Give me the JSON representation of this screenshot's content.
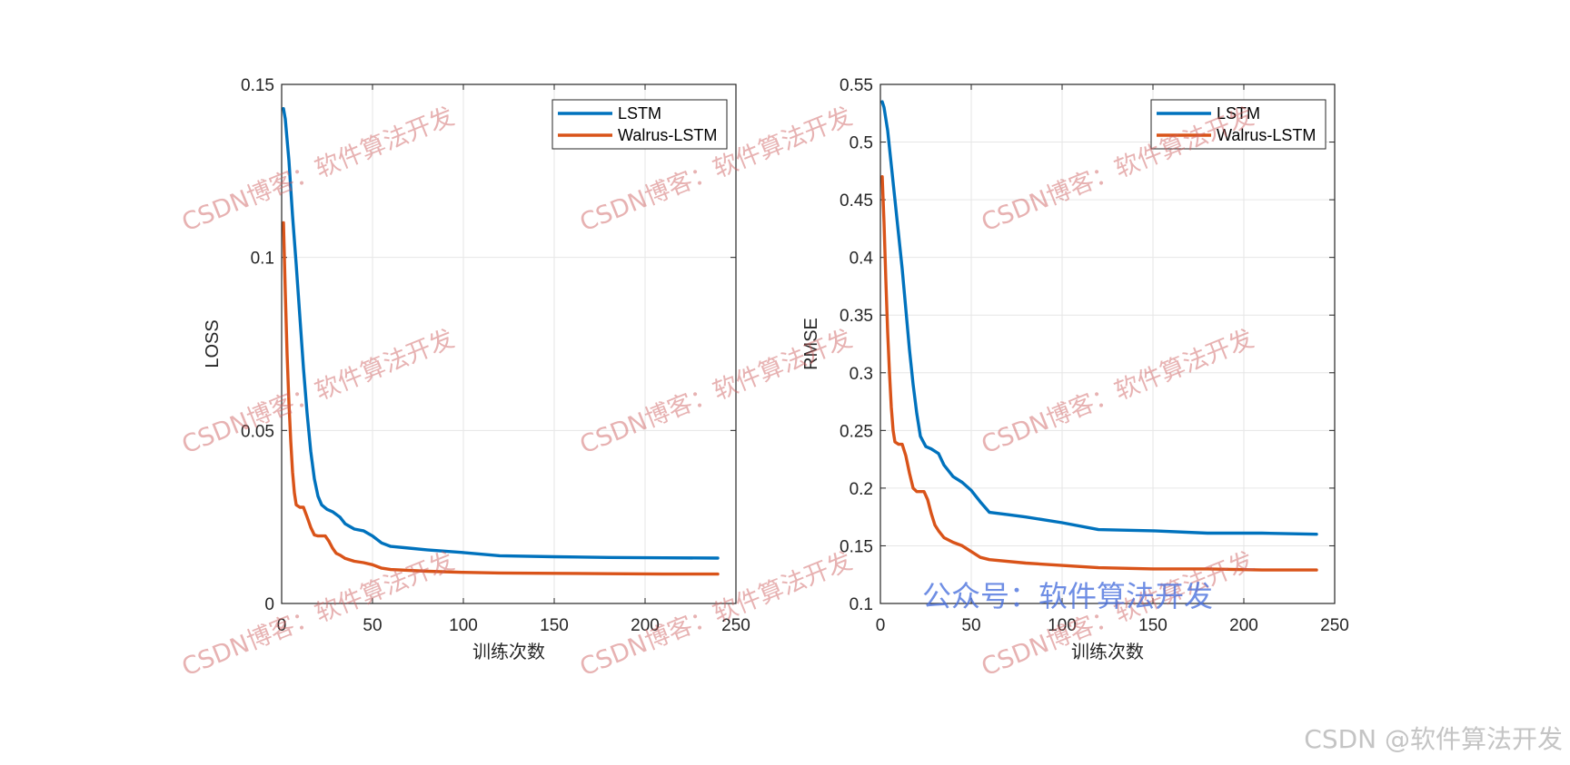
{
  "chart_data": [
    {
      "type": "line",
      "xlabel": "训练次数",
      "ylabel": "LOSS",
      "xlim": [
        0,
        250
      ],
      "ylim": [
        0,
        0.15
      ],
      "xticks": [
        0,
        50,
        100,
        150,
        200,
        250
      ],
      "yticks": [
        0,
        0.05,
        0.1,
        0.15
      ],
      "xtick_labels": [
        "0",
        "50",
        "100",
        "150",
        "200",
        "250"
      ],
      "ytick_labels": [
        "0",
        "0.05",
        "0.1",
        "0.15"
      ],
      "grid": true,
      "legend_position": "top-right",
      "series": [
        {
          "name": "LSTM",
          "color": "#0072BD",
          "x": [
            1,
            2,
            4,
            6,
            8,
            10,
            12,
            14,
            16,
            18,
            20,
            22,
            25,
            28,
            32,
            35,
            40,
            45,
            50,
            55,
            60,
            70,
            80,
            100,
            120,
            150,
            180,
            210,
            240
          ],
          "y": [
            0.143,
            0.14,
            0.128,
            0.112,
            0.098,
            0.083,
            0.068,
            0.055,
            0.044,
            0.036,
            0.031,
            0.0285,
            0.0272,
            0.0265,
            0.025,
            0.023,
            0.0215,
            0.021,
            0.0195,
            0.0175,
            0.0165,
            0.016,
            0.0155,
            0.0147,
            0.0138,
            0.0135,
            0.0133,
            0.0132,
            0.0131
          ]
        },
        {
          "name": "Walrus-LSTM",
          "color": "#D95319",
          "x": [
            1,
            2,
            3,
            4,
            5,
            6,
            7,
            8,
            10,
            12,
            14,
            16,
            18,
            20,
            24,
            26,
            28,
            30,
            32,
            35,
            40,
            45,
            50,
            55,
            60,
            80,
            100,
            120,
            150,
            180,
            210,
            240
          ],
          "y": [
            0.11,
            0.09,
            0.072,
            0.058,
            0.047,
            0.038,
            0.032,
            0.0285,
            0.0278,
            0.0278,
            0.025,
            0.022,
            0.0198,
            0.0195,
            0.0195,
            0.018,
            0.016,
            0.0145,
            0.014,
            0.013,
            0.0122,
            0.0118,
            0.0112,
            0.0102,
            0.0098,
            0.0093,
            0.009,
            0.0088,
            0.0087,
            0.0086,
            0.0085,
            0.0085
          ]
        }
      ]
    },
    {
      "type": "line",
      "xlabel": "训练次数",
      "ylabel": "RMSE",
      "xlim": [
        0,
        250
      ],
      "ylim": [
        0.1,
        0.55
      ],
      "xticks": [
        0,
        50,
        100,
        150,
        200,
        250
      ],
      "yticks": [
        0.1,
        0.15,
        0.2,
        0.25,
        0.3,
        0.35,
        0.4,
        0.45,
        0.5,
        0.55
      ],
      "xtick_labels": [
        "0",
        "50",
        "100",
        "150",
        "200",
        "250"
      ],
      "ytick_labels": [
        "0.1",
        "0.15",
        "0.2",
        "0.25",
        "0.3",
        "0.35",
        "0.4",
        "0.45",
        "0.5",
        "0.55"
      ],
      "grid": true,
      "legend_position": "top-right",
      "series": [
        {
          "name": "LSTM",
          "color": "#0072BD",
          "x": [
            1,
            2,
            4,
            6,
            8,
            10,
            12,
            14,
            16,
            18,
            20,
            22,
            25,
            28,
            32,
            35,
            40,
            45,
            50,
            55,
            60,
            70,
            80,
            100,
            120,
            150,
            180,
            210,
            240
          ],
          "y": [
            0.535,
            0.53,
            0.51,
            0.48,
            0.45,
            0.42,
            0.39,
            0.355,
            0.32,
            0.29,
            0.265,
            0.245,
            0.236,
            0.234,
            0.23,
            0.22,
            0.21,
            0.205,
            0.198,
            0.188,
            0.179,
            0.177,
            0.175,
            0.17,
            0.164,
            0.163,
            0.161,
            0.161,
            0.16
          ]
        },
        {
          "name": "Walrus-LSTM",
          "color": "#D95319",
          "x": [
            1,
            2,
            3,
            4,
            5,
            6,
            7,
            8,
            10,
            12,
            14,
            16,
            18,
            20,
            24,
            26,
            28,
            30,
            32,
            35,
            40,
            45,
            50,
            55,
            60,
            80,
            100,
            120,
            150,
            180,
            210,
            240
          ],
          "y": [
            0.47,
            0.43,
            0.38,
            0.335,
            0.3,
            0.27,
            0.25,
            0.24,
            0.238,
            0.238,
            0.228,
            0.213,
            0.2,
            0.197,
            0.197,
            0.19,
            0.178,
            0.168,
            0.163,
            0.157,
            0.153,
            0.15,
            0.145,
            0.14,
            0.138,
            0.135,
            0.133,
            0.131,
            0.13,
            0.13,
            0.129,
            0.129
          ]
        }
      ]
    }
  ],
  "watermarks": {
    "csdn_text": "CSDN博客：软件算法开发",
    "public_account": "公众号：软件算法开发",
    "footer": "CSDN @软件算法开发"
  },
  "colors": {
    "lstm": "#0072BD",
    "walrus": "#D95319",
    "grid": "#e6e6e6",
    "axis": "#262626"
  }
}
